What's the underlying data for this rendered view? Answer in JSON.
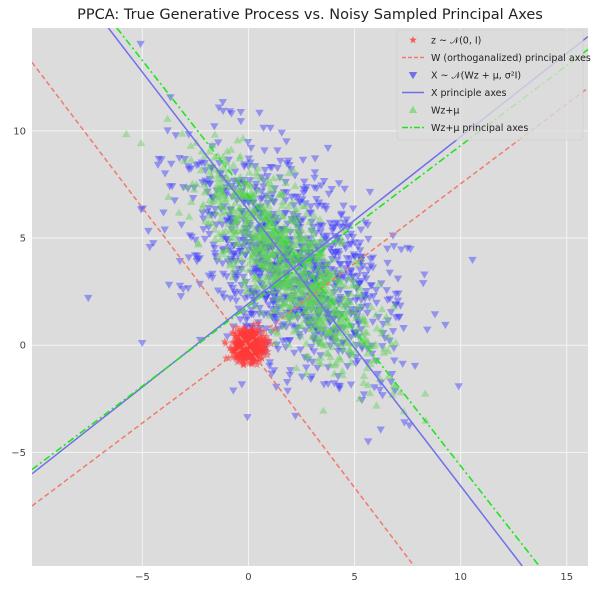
{
  "chart_data": {
    "type": "scatter",
    "title": "PPCA: True Generative Process vs. Noisy Sampled Principal Axes",
    "xlabel": "",
    "ylabel": "",
    "xlim": [
      -10.2,
      16.0
    ],
    "ylim": [
      -10.3,
      14.8
    ],
    "xticks": [
      -5,
      0,
      5,
      10,
      15
    ],
    "yticks": [
      -5,
      0,
      5,
      10
    ],
    "grid": true,
    "legend_position": "upper right",
    "background": "#dcdcdc",
    "grid_color": "#f4f4f4",
    "legend": [
      {
        "label": "z ~ 𝒩(0, I)",
        "marker": "star",
        "color": "#ff3b3b"
      },
      {
        "label": "W (orthoganalized) principal axes",
        "marker": "dashed-line",
        "color": "#f07a6e"
      },
      {
        "label": "X ~ 𝒩(Wz + μ, σ²I)",
        "marker": "triangle-down",
        "color": "#6f6fe8"
      },
      {
        "label": "X principle axes",
        "marker": "solid-line",
        "color": "#6f6fe8"
      },
      {
        "label": "Wz+μ",
        "marker": "triangle-up",
        "color": "#8ed88a"
      },
      {
        "label": "Wz+μ principal axes",
        "marker": "dashdot-line",
        "color": "#1ee61e"
      }
    ],
    "series": [
      {
        "name": "z ~ 𝒩(0, I)",
        "kind": "points",
        "distribution": {
          "center": [
            0,
            0
          ],
          "std": [
            0.35,
            0.35
          ],
          "n": 600
        },
        "color": "#ff3b3b"
      },
      {
        "name": "X ~ 𝒩(Wz + μ, σ²I)",
        "kind": "points",
        "distribution": {
          "center": [
            2.0,
            3.7
          ],
          "major_direction": [
            1,
            -1.25
          ],
          "major_std": 3.1,
          "minor_std": 2.0,
          "n": 1000
        },
        "color": "#3a3aff"
      },
      {
        "name": "Wz+μ",
        "kind": "points",
        "distribution": {
          "center": [
            2.0,
            3.7
          ],
          "major_direction": [
            1,
            -1.25
          ],
          "major_std": 3.0,
          "minor_std": 1.05,
          "n": 1000
        },
        "color": "#5fd05a"
      },
      {
        "name": "W (orthoganalized) principal axes",
        "kind": "lines",
        "segments": [
          [
            [
              -10.2,
              13.2
            ],
            [
              7.8,
              -10.3
            ]
          ],
          [
            [
              -10.2,
              -7.5
            ],
            [
              16.0,
              12.0
            ]
          ]
        ],
        "color": "#f07a6e"
      },
      {
        "name": "X principle axes",
        "kind": "lines",
        "segments": [
          [
            [
              -6.6,
              14.8
            ],
            [
              12.9,
              -10.3
            ]
          ],
          [
            [
              -10.2,
              -6.0
            ],
            [
              16.0,
              14.4
            ]
          ]
        ],
        "color": "#6f6fe8"
      },
      {
        "name": "Wz+μ principal axes",
        "kind": "lines",
        "segments": [
          [
            [
              -6.2,
              14.8
            ],
            [
              13.7,
              -10.3
            ]
          ],
          [
            [
              -10.2,
              -5.8
            ],
            [
              16.0,
              13.8
            ]
          ]
        ],
        "color": "#1ee61e"
      }
    ]
  }
}
